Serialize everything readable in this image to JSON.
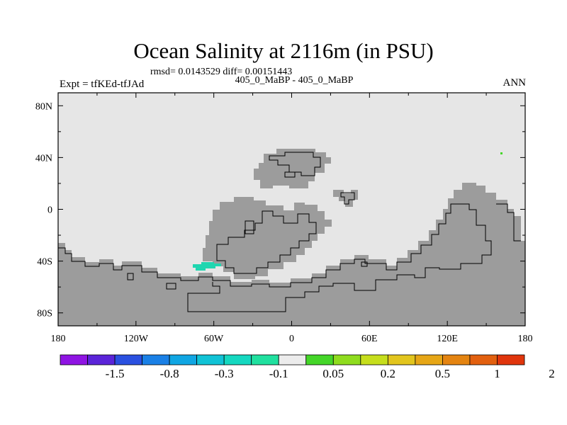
{
  "chart_data": {
    "type": "heatmap",
    "title": "Ocean Salinity at 2116m (in PSU)",
    "stats": "rmsd= 0.0143529 diff= 0.00151443",
    "subtitle": "405_0_MaBP - 405_0_MaBP",
    "left_label": "Expt = tfKEd-tfJAd",
    "right_label": "ANN",
    "x_axis": {
      "range": [
        -180,
        180
      ],
      "ticks": [
        {
          "value": -180,
          "label": "180"
        },
        {
          "value": -120,
          "label": "120W"
        },
        {
          "value": -60,
          "label": "60W"
        },
        {
          "value": 0,
          "label": "0"
        },
        {
          "value": 60,
          "label": "60E"
        },
        {
          "value": 120,
          "label": "120E"
        },
        {
          "value": 180,
          "label": "180"
        }
      ]
    },
    "y_axis": {
      "range": [
        -90,
        90
      ],
      "ticks": [
        {
          "value": 80,
          "label": "80N"
        },
        {
          "value": 40,
          "label": "40N"
        },
        {
          "value": 0,
          "label": "0"
        },
        {
          "value": -40,
          "label": "40S"
        },
        {
          "value": -80,
          "label": "80S"
        }
      ]
    },
    "ocean_fill": "#e6e6e6",
    "land_fill": "#9c9c9c",
    "colorbar": {
      "labels": [
        "-1.5",
        "-0.8",
        "-0.3",
        "-0.1",
        "0.05",
        "0.2",
        "0.5",
        "1",
        "2"
      ],
      "colors": [
        "#8f14e3",
        "#5b24d9",
        "#2a50e0",
        "#1a80e6",
        "#10a6e3",
        "#11c3d6",
        "#15d8c0",
        "#20e09f",
        "#ececec",
        "#44d628",
        "#8fdc1e",
        "#c6de1c",
        "#e2c51d",
        "#e6a616",
        "#e48411",
        "#e2600f",
        "#e0350c"
      ]
    },
    "anomalies": [
      {
        "lon_range": [
          -75,
          -55
        ],
        "lat_range": [
          -47,
          -43
        ],
        "color": "#20d6b0"
      },
      {
        "lon": 162,
        "lat": 43,
        "color": "#44d628"
      }
    ]
  }
}
